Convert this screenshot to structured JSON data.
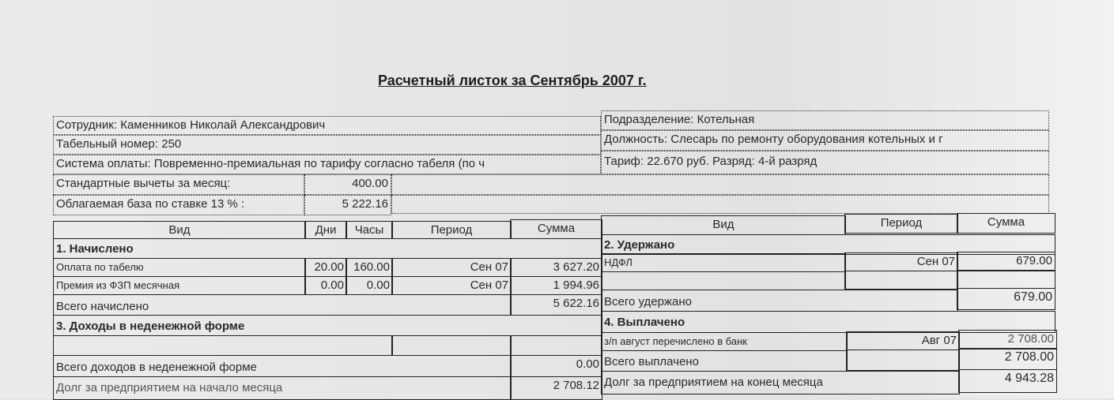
{
  "title": "Расчетный листок за Сентябрь 2007 г.",
  "header": {
    "employee": "Сотрудник: Каменников Николай Александрович",
    "tab_number": "Табельный номер: 250",
    "pay_system": "Система оплаты: Повременно-премиальная по тарифу согласно табеля (по ч",
    "std_deductions_label": "Стандартные вычеты за месяц:",
    "std_deductions_value": "400.00",
    "tax_base_label": "Облагаемая база по ставке 13 % :",
    "tax_base_value": "5 222.16",
    "department": "Подразделение: Котельная",
    "position": "Должность: Слесарь по ремонту оборудования  котельных и г",
    "tariff": "Тариф:     22.670 руб. Разряд: 4-й разряд"
  },
  "left_table": {
    "columns": [
      "Вид",
      "Дни",
      "Часы",
      "Период",
      "Сумма"
    ],
    "section1": "1. Начислено",
    "rows": [
      {
        "name": "Оплата по табелю",
        "days": "20.00",
        "hours": "160.00",
        "period": "Сен 07",
        "sum": "3 627.20"
      },
      {
        "name": "Премия из ФЗП месячная",
        "days": "0.00",
        "hours": "0.00",
        "period": "Сен 07",
        "sum": "1 994.96"
      }
    ],
    "total_accrued_label": "Всего начислено",
    "total_accrued": "5 622.16",
    "section3": "3. Доходы в неденежной форме",
    "total_nonmonetary_label": "Всего доходов в неденежной форме",
    "total_nonmonetary": "0.00",
    "debt_start_label": "Долг за предприятием на начало месяца",
    "debt_start": "2 708.12"
  },
  "right_table": {
    "columns": [
      "Вид",
      "Период",
      "Сумма"
    ],
    "section2": "2. Удержано",
    "withheld_rows": [
      {
        "name": "НДФЛ",
        "period": "Сен 07",
        "sum": "679.00"
      }
    ],
    "total_withheld_label": "Всего удержано",
    "total_withheld": "679.00",
    "section4": "4. Выплачено",
    "paid_rows": [
      {
        "name": "з/п август перечислено в банк",
        "period": "Авг 07",
        "sum": "2 708.00"
      }
    ],
    "total_paid_label": "Всего выплачено",
    "total_paid": "2 708.00",
    "debt_end_label": "Долг за предприятием  на конец месяца",
    "debt_end": "4 943.28"
  }
}
